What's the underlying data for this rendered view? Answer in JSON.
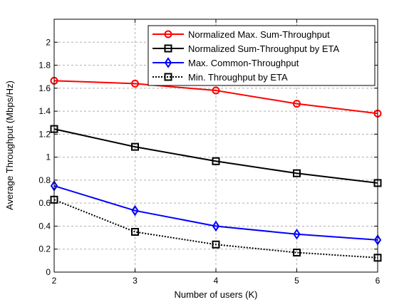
{
  "chart_data": {
    "type": "line",
    "xlabel": "Number of users (K)",
    "ylabel": "Average Throughput (Mbps/Hz)",
    "x": [
      2,
      3,
      4,
      5,
      6
    ],
    "xlim": [
      2,
      6
    ],
    "ylim": [
      0,
      2.2
    ],
    "xticks": [
      "2",
      "3",
      "4",
      "5",
      "6"
    ],
    "yticks": [
      "0",
      "0.2",
      "0.4",
      "0.6",
      "0.8",
      "1",
      "1.2",
      "1.4",
      "1.6",
      "1.8",
      "2"
    ],
    "ytick_values": [
      0,
      0.2,
      0.4,
      0.6,
      0.8,
      1.0,
      1.2,
      1.4,
      1.6,
      1.8,
      2.0
    ],
    "grid": true,
    "legend_position": "top-right",
    "series": [
      {
        "name": "Normalized Max. Sum-Throughput",
        "values": [
          1.665,
          1.64,
          1.58,
          1.465,
          1.38
        ],
        "color": "#ff0000",
        "marker": "circle",
        "dash": "solid"
      },
      {
        "name": "Normalized Sum-Throughput by ETA",
        "values": [
          1.245,
          1.09,
          0.965,
          0.86,
          0.775
        ],
        "color": "#000000",
        "marker": "square",
        "dash": "solid"
      },
      {
        "name": "Max. Common-Throughput",
        "values": [
          0.75,
          0.535,
          0.4,
          0.33,
          0.28
        ],
        "color": "#0000ff",
        "marker": "diamond",
        "dash": "solid"
      },
      {
        "name": "Min. Throughput by ETA",
        "values": [
          0.63,
          0.35,
          0.24,
          0.17,
          0.125
        ],
        "color": "#000000",
        "marker": "square",
        "dash": "dotted"
      }
    ]
  }
}
